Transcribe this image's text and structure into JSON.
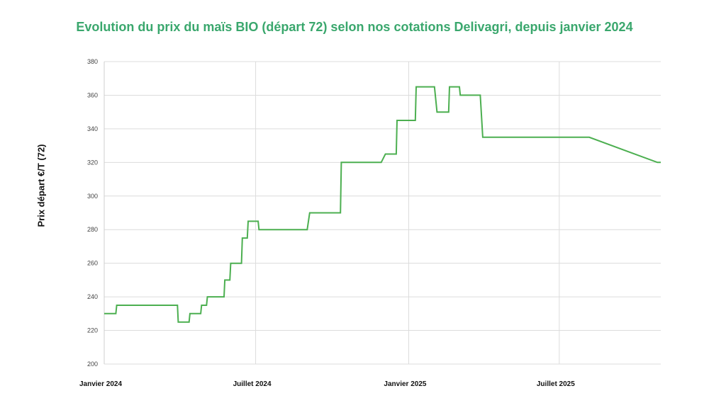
{
  "chart_data": {
    "type": "line",
    "title": "Evolution du prix du maïs BIO (départ 72) selon nos cotations Delivagri, depuis janvier 2024",
    "ylabel": "Prix départ €/T (72)",
    "xlabel": "",
    "ylim": [
      200,
      380
    ],
    "yticks": [
      200,
      220,
      240,
      260,
      280,
      300,
      320,
      340,
      360,
      380
    ],
    "xlim": [
      "2024-01-01",
      "2025-10-31"
    ],
    "xticks": [
      {
        "date": "2024-01-01",
        "label": "Janvier 2024"
      },
      {
        "date": "2024-07-01",
        "label": "Juillet 2024"
      },
      {
        "date": "2025-01-01",
        "label": "Janvier 2025"
      },
      {
        "date": "2025-07-01",
        "label": "Juillet 2025"
      }
    ],
    "grid": true,
    "color": "#4caf50",
    "series": [
      {
        "points": [
          [
            "2024-01-01",
            230
          ],
          [
            "2024-01-15",
            230
          ],
          [
            "2024-01-16",
            235
          ],
          [
            "2024-03-29",
            235
          ],
          [
            "2024-03-30",
            225
          ],
          [
            "2024-04-12",
            225
          ],
          [
            "2024-04-13",
            230
          ],
          [
            "2024-04-26",
            230
          ],
          [
            "2024-04-27",
            235
          ],
          [
            "2024-05-03",
            235
          ],
          [
            "2024-05-04",
            240
          ],
          [
            "2024-05-24",
            240
          ],
          [
            "2024-05-25",
            250
          ],
          [
            "2024-05-31",
            250
          ],
          [
            "2024-06-01",
            260
          ],
          [
            "2024-06-14",
            260
          ],
          [
            "2024-06-15",
            275
          ],
          [
            "2024-06-21",
            275
          ],
          [
            "2024-06-22",
            285
          ],
          [
            "2024-07-04",
            285
          ],
          [
            "2024-07-05",
            280
          ],
          [
            "2024-09-01",
            280
          ],
          [
            "2024-09-04",
            290
          ],
          [
            "2024-10-11",
            290
          ],
          [
            "2024-10-12",
            320
          ],
          [
            "2024-11-29",
            320
          ],
          [
            "2024-12-04",
            325
          ],
          [
            "2024-12-17",
            325
          ],
          [
            "2024-12-18",
            345
          ],
          [
            "2025-01-09",
            345
          ],
          [
            "2025-01-10",
            365
          ],
          [
            "2025-02-01",
            365
          ],
          [
            "2025-02-04",
            350
          ],
          [
            "2025-02-18",
            350
          ],
          [
            "2025-02-19",
            365
          ],
          [
            "2025-03-03",
            365
          ],
          [
            "2025-03-04",
            360
          ],
          [
            "2025-03-28",
            360
          ],
          [
            "2025-03-31",
            335
          ],
          [
            "2025-08-06",
            335
          ],
          [
            "2025-10-27",
            320
          ],
          [
            "2025-10-31",
            320
          ]
        ]
      }
    ]
  }
}
